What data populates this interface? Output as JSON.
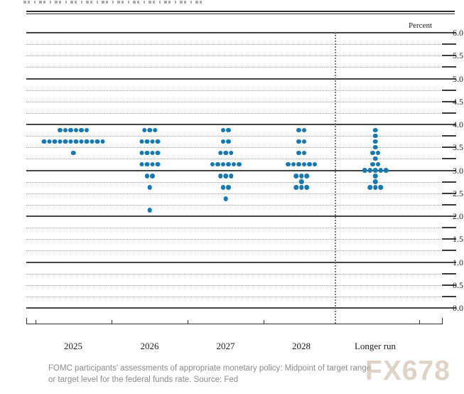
{
  "header": {
    "top_rule": "double-rule"
  },
  "caption": {
    "line1": "FOMC participants' assessments of appropriate monetary policy: Midpoint of target range",
    "line2": "or target level for the federal funds rate. Source: Fed"
  },
  "watermark": "FX678",
  "chart_data": {
    "type": "scatter",
    "subtype": "fomc-dot-plot",
    "title": "",
    "xlabel": "",
    "ylabel": "Percent",
    "ylim": [
      0.0,
      6.0
    ],
    "gridline_step": 0.25,
    "solid_gridlines_at": "integers",
    "y_tick_labels": [
      "6.0",
      "5.5",
      "5.0",
      "4.5",
      "4.0",
      "3.5",
      "3.0",
      "2.5",
      "2.0",
      "1.5",
      "1.0",
      "0.5",
      "0.0"
    ],
    "categories": [
      "2025",
      "2026",
      "2027",
      "2028",
      "Longer run"
    ],
    "separator_before_category": "Longer run",
    "dot_color": "#1879b0",
    "series": [
      {
        "name": "2025",
        "dots": [
          {
            "rate": 3.875,
            "count": 6
          },
          {
            "rate": 3.625,
            "count": 12
          },
          {
            "rate": 3.375,
            "count": 1
          }
        ]
      },
      {
        "name": "2026",
        "dots": [
          {
            "rate": 3.875,
            "count": 3
          },
          {
            "rate": 3.625,
            "count": 4
          },
          {
            "rate": 3.375,
            "count": 4
          },
          {
            "rate": 3.125,
            "count": 4
          },
          {
            "rate": 2.875,
            "count": 2
          },
          {
            "rate": 2.625,
            "count": 1
          },
          {
            "rate": 2.125,
            "count": 1
          }
        ]
      },
      {
        "name": "2027",
        "dots": [
          {
            "rate": 3.875,
            "count": 2
          },
          {
            "rate": 3.625,
            "count": 2
          },
          {
            "rate": 3.375,
            "count": 3
          },
          {
            "rate": 3.125,
            "count": 6
          },
          {
            "rate": 2.875,
            "count": 3
          },
          {
            "rate": 2.625,
            "count": 2
          },
          {
            "rate": 2.375,
            "count": 1
          }
        ]
      },
      {
        "name": "2028",
        "dots": [
          {
            "rate": 3.875,
            "count": 2
          },
          {
            "rate": 3.625,
            "count": 2
          },
          {
            "rate": 3.375,
            "count": 2
          },
          {
            "rate": 3.125,
            "count": 6
          },
          {
            "rate": 2.875,
            "count": 3
          },
          {
            "rate": 2.75,
            "count": 1
          },
          {
            "rate": 2.625,
            "count": 3
          }
        ]
      },
      {
        "name": "Longer run",
        "dots": [
          {
            "rate": 3.875,
            "count": 1
          },
          {
            "rate": 3.75,
            "count": 1
          },
          {
            "rate": 3.625,
            "count": 1
          },
          {
            "rate": 3.5,
            "count": 1
          },
          {
            "rate": 3.375,
            "count": 2
          },
          {
            "rate": 3.25,
            "count": 1
          },
          {
            "rate": 3.125,
            "count": 2
          },
          {
            "rate": 3.0,
            "count": 5
          },
          {
            "rate": 2.875,
            "count": 1
          },
          {
            "rate": 2.75,
            "count": 1
          },
          {
            "rate": 2.625,
            "count": 3
          }
        ]
      }
    ]
  }
}
